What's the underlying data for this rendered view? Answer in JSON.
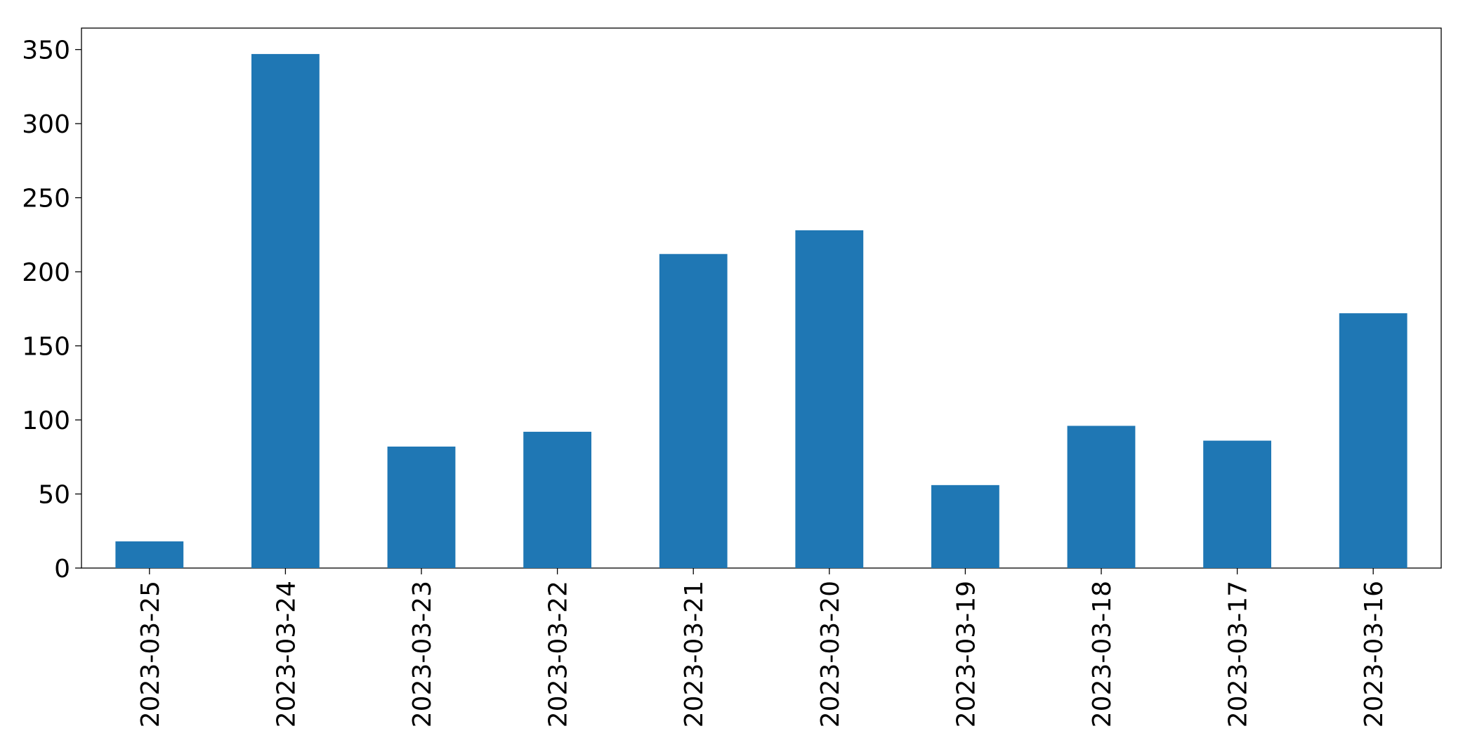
{
  "chart_data": {
    "type": "bar",
    "categories": [
      "2023-03-25",
      "2023-03-24",
      "2023-03-23",
      "2023-03-22",
      "2023-03-21",
      "2023-03-20",
      "2023-03-19",
      "2023-03-18",
      "2023-03-17",
      "2023-03-16"
    ],
    "values": [
      18,
      347,
      82,
      92,
      212,
      228,
      56,
      96,
      86,
      172
    ],
    "color": "#1f77b4",
    "ylim": [
      0,
      364.5
    ],
    "yticks": [
      0,
      50,
      100,
      150,
      200,
      250,
      300,
      350
    ],
    "grid": false
  }
}
